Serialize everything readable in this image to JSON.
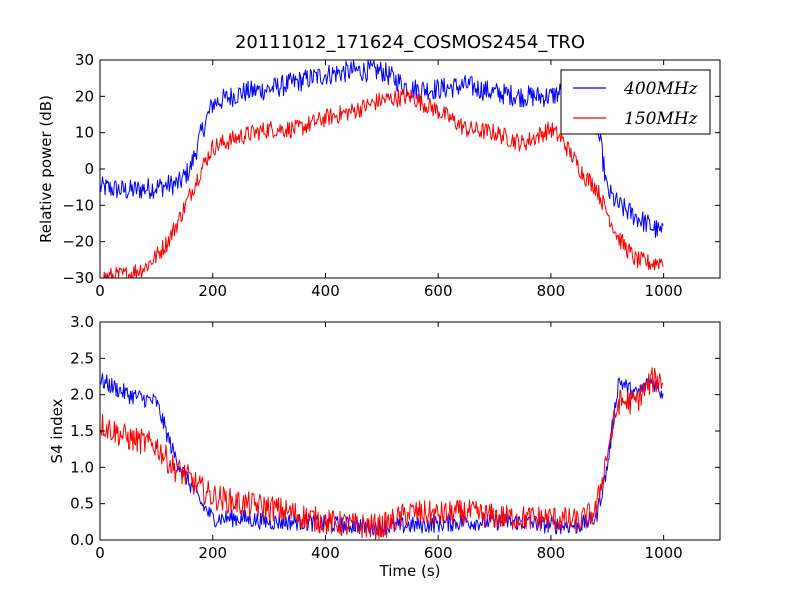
{
  "chart_data": [
    {
      "type": "line",
      "title": "20111012_171624_COSMOS2454_TRO",
      "ylabel": "Relative power (dB)",
      "xlabel": "",
      "xlim": [
        0,
        1100
      ],
      "ylim": [
        -30,
        30
      ],
      "x_ticks": [
        0,
        200,
        400,
        600,
        800,
        1000
      ],
      "y_ticks": [
        -30,
        -20,
        -10,
        0,
        10,
        20,
        30
      ],
      "x_tick_labels": [
        "0",
        "200",
        "400",
        "600",
        "800",
        "1000"
      ],
      "y_tick_labels": [
        "−30",
        "−20",
        "−10",
        "0",
        "10",
        "20",
        "30"
      ],
      "legend_position": "top-right",
      "grid": false,
      "series": [
        {
          "name": "400MHz",
          "color": "#0000ff",
          "noise": 3,
          "x": [
            0,
            50,
            100,
            140,
            160,
            180,
            200,
            250,
            300,
            350,
            400,
            450,
            500,
            550,
            600,
            650,
            700,
            750,
            800,
            830,
            850,
            870,
            880,
            890,
            900,
            920,
            950,
            980,
            1000
          ],
          "y": [
            -5,
            -6,
            -5,
            -4,
            0,
            10,
            18,
            21,
            22,
            24,
            26,
            27,
            27,
            22,
            22,
            23,
            21,
            20,
            20,
            22,
            17,
            18,
            13,
            5,
            -6,
            -10,
            -13,
            -16,
            -18
          ]
        },
        {
          "name": "150MHz",
          "color": "#ff0000",
          "noise": 2.5,
          "x": [
            0,
            50,
            80,
            100,
            120,
            140,
            160,
            180,
            200,
            250,
            300,
            350,
            400,
            450,
            500,
            550,
            600,
            650,
            700,
            750,
            800,
            820,
            840,
            860,
            880,
            900,
            920,
            950,
            980,
            1000
          ],
          "y": [
            -30,
            -29,
            -27,
            -24,
            -20,
            -14,
            -7,
            0,
            6,
            9,
            11,
            11,
            14,
            16,
            19,
            20,
            16,
            11,
            10,
            7,
            11,
            8,
            3,
            -2,
            -5,
            -12,
            -19,
            -25,
            -26,
            -25
          ]
        }
      ]
    },
    {
      "type": "line",
      "title": "",
      "ylabel": "S4 index",
      "xlabel": "Time (s)",
      "xlim": [
        0,
        1100
      ],
      "ylim": [
        0,
        3
      ],
      "x_ticks": [
        0,
        200,
        400,
        600,
        800,
        1000
      ],
      "y_ticks": [
        0,
        0.5,
        1,
        1.5,
        2,
        2.5,
        3
      ],
      "x_tick_labels": [
        "0",
        "200",
        "400",
        "600",
        "800",
        "1000"
      ],
      "y_tick_labels": [
        "0.0",
        "0.5",
        "1.0",
        "1.5",
        "2.0",
        "2.5",
        "3.0"
      ],
      "grid": false,
      "series": [
        {
          "name": "400MHz",
          "color": "#0000ff",
          "noise": 0.12,
          "x": [
            0,
            50,
            100,
            130,
            150,
            180,
            200,
            250,
            300,
            350,
            400,
            450,
            500,
            550,
            600,
            650,
            700,
            750,
            800,
            850,
            880,
            900,
            920,
            950,
            980,
            1000
          ],
          "y": [
            2.2,
            2.0,
            1.9,
            1.2,
            0.9,
            0.5,
            0.3,
            0.3,
            0.25,
            0.25,
            0.22,
            0.2,
            0.18,
            0.2,
            0.22,
            0.25,
            0.25,
            0.25,
            0.2,
            0.2,
            0.3,
            1.0,
            2.2,
            2.0,
            2.2,
            2.0
          ]
        },
        {
          "name": "150MHz",
          "color": "#ff0000",
          "noise": 0.18,
          "x": [
            0,
            50,
            100,
            130,
            150,
            180,
            200,
            250,
            300,
            350,
            400,
            450,
            500,
            550,
            600,
            650,
            700,
            750,
            800,
            850,
            880,
            900,
            920,
            950,
            980,
            1000
          ],
          "y": [
            1.6,
            1.4,
            1.3,
            1.0,
            0.9,
            0.7,
            0.6,
            0.5,
            0.45,
            0.35,
            0.25,
            0.2,
            0.18,
            0.38,
            0.35,
            0.38,
            0.32,
            0.3,
            0.3,
            0.25,
            0.4,
            1.2,
            1.9,
            1.9,
            2.2,
            2.2
          ]
        }
      ]
    }
  ]
}
